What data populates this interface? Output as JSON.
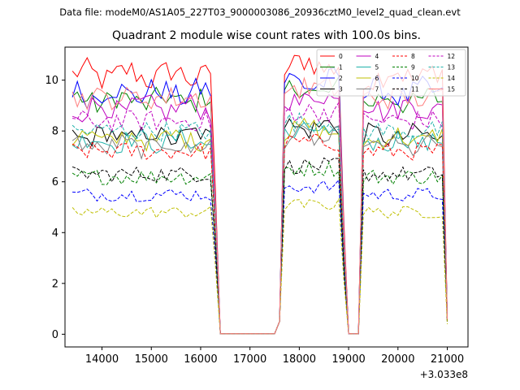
{
  "suptitle": "Data file: modeM0/AS1A05_227T03_9000003086_20936cztM0_level2_quad_clean.evt",
  "chart_data": {
    "type": "line",
    "title": "Quadrant 2 module wise count rates with 100.0s bins.",
    "xlabel": "",
    "ylabel": "",
    "x_offset_label": "+3.033e8",
    "xlim": [
      13250,
      21420
    ],
    "ylim": [
      -0.5,
      11.3
    ],
    "xticks": [
      14000,
      15000,
      16000,
      17000,
      18000,
      19000,
      20000,
      21000
    ],
    "xtick_labels": [
      "14000",
      "15000",
      "16000",
      "17000",
      "18000",
      "19000",
      "20000",
      "21000"
    ],
    "yticks": [
      0,
      2,
      4,
      6,
      8,
      10
    ],
    "ytick_labels": [
      "0",
      "2",
      "4",
      "6",
      "8",
      "10"
    ],
    "legend_position": "top-right",
    "x_start": 13400,
    "x_step": 100,
    "segments": [
      {
        "from": 13400,
        "to": 16200,
        "state": "on"
      },
      {
        "from": 16300,
        "to": 16300,
        "state": "ramp-down"
      },
      {
        "from": 16400,
        "to": 17500,
        "state": "off"
      },
      {
        "from": 17600,
        "to": 17600,
        "state": "ramp-up"
      },
      {
        "from": 17700,
        "to": 18800,
        "state": "on"
      },
      {
        "from": 18900,
        "to": 18900,
        "state": "ramp-down"
      },
      {
        "from": 19000,
        "to": 19200,
        "state": "off"
      },
      {
        "from": 19300,
        "to": 20900,
        "state": "on"
      },
      {
        "from": 21000,
        "to": 21000,
        "state": "end"
      }
    ],
    "series": [
      {
        "name": "0",
        "color": "#ff0000",
        "dash": "solid",
        "level": 10.2,
        "end": 0.7
      },
      {
        "name": "1",
        "color": "#008000",
        "dash": "solid",
        "level": 9.2,
        "end": 0.6
      },
      {
        "name": "2",
        "color": "#0000ff",
        "dash": "solid",
        "level": 9.5,
        "end": 0.7
      },
      {
        "name": "3",
        "color": "#000000",
        "dash": "solid",
        "level": 7.8,
        "end": 0.6
      },
      {
        "name": "4",
        "color": "#bf00bf",
        "dash": "solid",
        "level": 8.9,
        "end": 0.6
      },
      {
        "name": "5",
        "color": "#20b2aa",
        "dash": "solid",
        "level": 7.6,
        "end": 0.6
      },
      {
        "name": "6",
        "color": "#bfbf00",
        "dash": "solid",
        "level": 7.7,
        "end": 0.6
      },
      {
        "name": "7",
        "color": "#808080",
        "dash": "solid",
        "level": 7.4,
        "end": 0.6
      },
      {
        "name": "8",
        "color": "#ff0000",
        "dash": "dashed",
        "level": 7.2,
        "end": 0.5
      },
      {
        "name": "9",
        "color": "#008000",
        "dash": "dashed",
        "level": 6.2,
        "end": 0.5
      },
      {
        "name": "10",
        "color": "#0000ff",
        "dash": "dashed",
        "level": 5.5,
        "end": 0.5
      },
      {
        "name": "11",
        "color": "#000000",
        "dash": "dashed",
        "level": 6.3,
        "end": 0.5
      },
      {
        "name": "12",
        "color": "#bf00bf",
        "dash": "dashed",
        "level": 8.4,
        "end": 0.6
      },
      {
        "name": "13",
        "color": "#20b2aa",
        "dash": "dashed",
        "level": 8.0,
        "end": 0.6
      },
      {
        "name": "14",
        "color": "#bfbf00",
        "dash": "dashed",
        "level": 4.8,
        "end": 0.4
      },
      {
        "name": "15",
        "color": "#ff7f7f",
        "dash": "solid",
        "level": 9.3,
        "end": 0.6
      }
    ]
  }
}
